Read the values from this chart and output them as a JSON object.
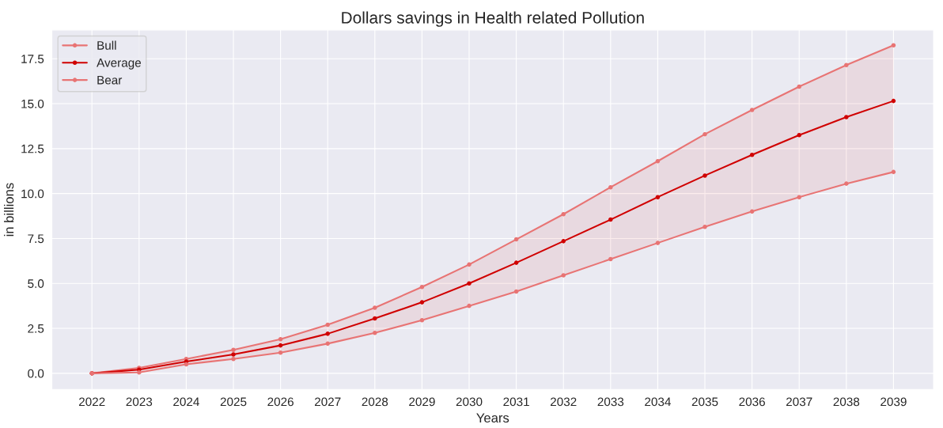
{
  "chart_data": {
    "type": "line",
    "title": "Dollars savings in Health related Pollution",
    "xlabel": "Years",
    "ylabel": "in billions",
    "categories": [
      "2022",
      "2023",
      "2024",
      "2025",
      "2026",
      "2027",
      "2028",
      "2029",
      "2030",
      "2031",
      "2032",
      "2033",
      "2034",
      "2035",
      "2036",
      "2037",
      "2038",
      "2039"
    ],
    "series": [
      {
        "name": "Bull",
        "color": "#e87474",
        "values": [
          0,
          0.3,
          0.8,
          1.3,
          1.9,
          2.7,
          3.65,
          4.8,
          6.05,
          7.45,
          8.85,
          10.35,
          11.8,
          13.3,
          14.65,
          15.95,
          17.15,
          18.25
        ]
      },
      {
        "name": "Average",
        "color": "#d00000",
        "values": [
          0,
          0.2,
          0.65,
          1.05,
          1.55,
          2.2,
          3.05,
          3.95,
          5.0,
          6.15,
          7.35,
          8.55,
          9.8,
          11.0,
          12.15,
          13.25,
          14.25,
          15.15
        ],
        "lower": [
          0,
          0.05,
          0.5,
          0.8,
          1.15,
          1.65,
          2.25,
          2.95,
          3.75,
          4.55,
          5.45,
          6.35,
          7.25,
          8.15,
          9.0,
          9.8,
          10.55,
          11.2
        ],
        "upper": [
          0,
          0.3,
          0.8,
          1.3,
          1.9,
          2.7,
          3.65,
          4.8,
          6.05,
          7.45,
          8.85,
          10.35,
          11.8,
          13.3,
          14.65,
          15.95,
          17.15,
          18.25
        ]
      },
      {
        "name": "Bear",
        "color": "#e87474",
        "values": [
          0,
          0.05,
          0.5,
          0.8,
          1.15,
          1.65,
          2.25,
          2.95,
          3.75,
          4.55,
          5.45,
          6.35,
          7.25,
          8.15,
          9.0,
          9.8,
          10.55,
          11.2
        ]
      }
    ],
    "ylim": [
      -0.9,
      19.1
    ],
    "yticks": [
      {
        "value": 0,
        "label": "0.0"
      },
      {
        "value": 2.5,
        "label": "2.5"
      },
      {
        "value": 5,
        "label": "5.0"
      },
      {
        "value": 7.5,
        "label": "7.5"
      },
      {
        "value": 10,
        "label": "10.0"
      },
      {
        "value": 12.5,
        "label": "12.5"
      },
      {
        "value": 15,
        "label": "15.0"
      },
      {
        "value": 17.5,
        "label": "17.5"
      }
    ],
    "grid": true,
    "legend": "top left",
    "marker": "circle",
    "line_style": "solid"
  }
}
